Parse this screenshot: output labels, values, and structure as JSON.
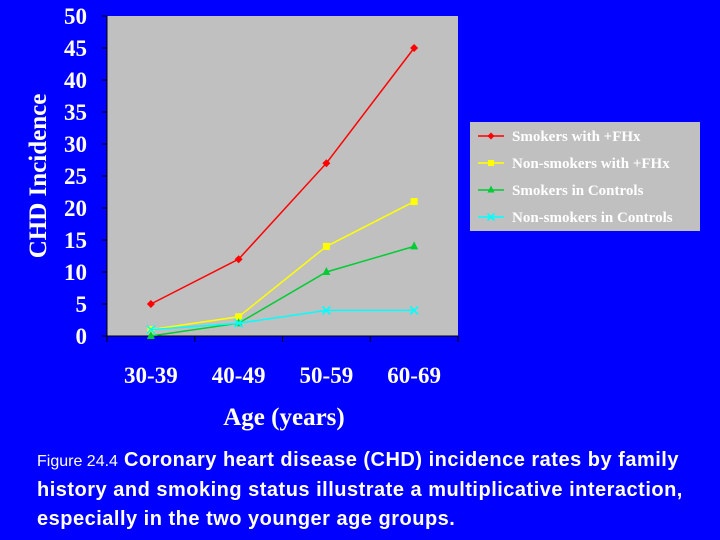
{
  "chart_data": {
    "type": "line",
    "title": "",
    "xlabel": "Age (years)",
    "ylabel": "CHD Incidence",
    "categories": [
      "30-39",
      "40-49",
      "50-59",
      "60-69"
    ],
    "ylim": [
      0,
      50
    ],
    "yticks": [
      "0",
      "5",
      "10",
      "15",
      "20",
      "25",
      "30",
      "35",
      "40",
      "45",
      "50"
    ],
    "grid": false,
    "legend_position": "right",
    "series": [
      {
        "name": "Smokers with +FHx",
        "values": [
          5,
          12,
          27,
          45
        ],
        "color": "#ff0000",
        "marker": "diamond"
      },
      {
        "name": "Non-smokers with +FHx",
        "values": [
          1,
          3,
          14,
          21
        ],
        "color": "#ffff00",
        "marker": "square"
      },
      {
        "name": "Smokers in Controls",
        "values": [
          0,
          2,
          10,
          14
        ],
        "color": "#00cc33",
        "marker": "triangle"
      },
      {
        "name": "Non-smokers in Controls",
        "values": [
          1,
          2,
          4,
          4
        ],
        "color": "#00ffff",
        "marker": "x"
      }
    ],
    "colors": {
      "background": "#0000ff",
      "plot_area": "#c0c0c0",
      "text": "#ffffff"
    }
  },
  "caption": {
    "label": "Figure 24.4",
    "text": "Coronary heart disease (CHD) incidence rates by family history and smoking status illustrate a multiplicative interaction, especially in the two younger age groups."
  }
}
